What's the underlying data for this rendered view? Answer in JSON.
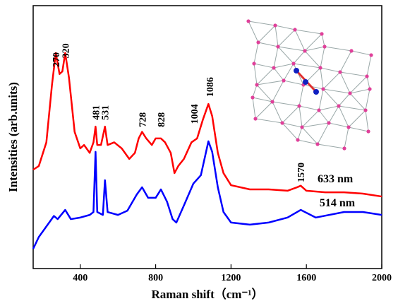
{
  "chart_data": {
    "type": "line",
    "x_label": "Raman shift（cm⁻¹）",
    "y_label": "Intensities (arb.units)",
    "xlim": [
      150,
      2000
    ],
    "xticks": [
      400,
      800,
      1200,
      1600,
      2000
    ],
    "ylim": [
      0,
      100
    ],
    "series": [
      {
        "name": "633 nm",
        "color": "#ff0000",
        "x": [
          150,
          180,
          220,
          250,
          270,
          290,
          305,
          320,
          340,
          370,
          400,
          420,
          450,
          470,
          481,
          490,
          510,
          531,
          545,
          580,
          620,
          660,
          690,
          710,
          728,
          750,
          780,
          800,
          828,
          850,
          880,
          900,
          920,
          950,
          990,
          1020,
          1050,
          1080,
          1100,
          1130,
          1160,
          1200,
          1300,
          1400,
          1500,
          1550,
          1570,
          1600,
          1700,
          1800,
          1900,
          2000
        ],
        "values": [
          37.6,
          39,
          48,
          70,
          82,
          74,
          75,
          82,
          72.6,
          52,
          45.7,
          47,
          44,
          48,
          54,
          47,
          47,
          54,
          47,
          48,
          45.7,
          41.7,
          44,
          49.5,
          52,
          49.5,
          47,
          49.5,
          49.5,
          48,
          44,
          36.3,
          39,
          41.7,
          48,
          49.5,
          56.5,
          62.6,
          58,
          44,
          36.3,
          31.7,
          30.1,
          30.1,
          29.6,
          30.9,
          31.5,
          29.6,
          29,
          29,
          28.5,
          27.4
        ],
        "label_x": 1659,
        "label_y": 32.8
      },
      {
        "name": "514 nm",
        "color": "#0000ff",
        "x": [
          150,
          180,
          220,
          260,
          280,
          320,
          350,
          400,
          450,
          470,
          481,
          490,
          520,
          531,
          545,
          600,
          650,
          700,
          728,
          760,
          800,
          828,
          860,
          890,
          910,
          950,
          1000,
          1040,
          1080,
          1100,
          1130,
          1160,
          1200,
          1300,
          1400,
          1500,
          1570,
          1650,
          1800,
          1900,
          2000
        ],
        "values": [
          7.5,
          12,
          16,
          20,
          18.8,
          22.3,
          18.8,
          19.4,
          20.4,
          21.5,
          44.4,
          21.5,
          20.4,
          33.6,
          21.5,
          20.4,
          22,
          28.2,
          30.9,
          26.9,
          26.9,
          30.1,
          25.5,
          18.8,
          17.5,
          24,
          32.3,
          35.5,
          48.4,
          44.4,
          30.9,
          21.5,
          17.5,
          16.7,
          17.5,
          19.4,
          22.3,
          19.4,
          21.5,
          21.5,
          20.4
        ],
        "label_x": 1670,
        "label_y": 23.7
      }
    ],
    "annotations": [
      {
        "text": "270",
        "x": 270,
        "y": 76.6
      },
      {
        "text": "320",
        "x": 320,
        "y": 80
      },
      {
        "text": "481",
        "x": 481,
        "y": 56.5
      },
      {
        "text": "531",
        "x": 531,
        "y": 56.5
      },
      {
        "text": "728",
        "x": 728,
        "y": 53.8
      },
      {
        "text": "828",
        "x": 828,
        "y": 53.8
      },
      {
        "text": "1004",
        "x": 1004,
        "y": 55
      },
      {
        "text": "1086",
        "x": 1086,
        "y": 65.3
      },
      {
        "text": "1570",
        "x": 1570,
        "y": 32.8
      }
    ]
  }
}
